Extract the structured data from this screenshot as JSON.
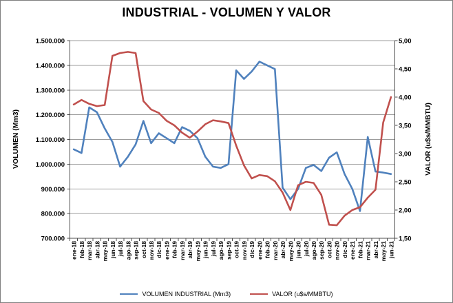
{
  "chart_data": {
    "type": "line",
    "title": "INDUSTRIAL - VOLUMEN Y VALOR",
    "grid": true,
    "legend_position": "bottom",
    "categories": [
      "ene-18",
      "feb-18",
      "mar-18",
      "abr-18",
      "may-18",
      "jun-18",
      "jul-18",
      "ago-18",
      "sep-18",
      "oct-18",
      "nov-18",
      "dic-18",
      "ene-19",
      "feb-19",
      "mar-19",
      "abr-19",
      "may-19",
      "jun-19",
      "jul-19",
      "ago-19",
      "sep-19",
      "oct-19",
      "nov-19",
      "dic-19",
      "ene-20",
      "feb-20",
      "mar-20",
      "abr-20",
      "may-20",
      "jun-20",
      "jul-20",
      "ago-20",
      "sep-20",
      "oct-20",
      "nov-20",
      "dic-20",
      "ene-21",
      "feb-21",
      "mar-21",
      "abr-21",
      "may-21",
      "jun-21"
    ],
    "series": [
      {
        "name": "VOLUMEN  INDUSTRIAL  (Mm3)",
        "axis": "left",
        "color": "#4F81BD",
        "values": [
          1060000,
          1045000,
          1230000,
          1210000,
          1145000,
          1090000,
          990000,
          1030000,
          1080000,
          1175000,
          1085000,
          1125000,
          1105000,
          1085000,
          1150000,
          1135000,
          1105000,
          1030000,
          990000,
          985000,
          1000000,
          1380000,
          1345000,
          1375000,
          1415000,
          1400000,
          1385000,
          905000,
          858000,
          900000,
          985000,
          997000,
          972000,
          1026000,
          1048000,
          960000,
          900000,
          810000,
          1110000,
          970000,
          966000,
          960000
        ]
      },
      {
        "name": "VALOR (u$s/MMBTU)",
        "axis": "right",
        "color": "#C0504D",
        "values": [
          3.87,
          3.95,
          3.88,
          3.84,
          3.86,
          4.73,
          4.78,
          4.8,
          4.78,
          3.93,
          3.78,
          3.72,
          3.58,
          3.5,
          3.37,
          3.28,
          3.39,
          3.52,
          3.59,
          3.57,
          3.54,
          3.14,
          2.79,
          2.56,
          2.62,
          2.6,
          2.51,
          2.31,
          2.0,
          2.44,
          2.5,
          2.48,
          2.27,
          1.74,
          1.73,
          1.9,
          2.0,
          2.05,
          2.22,
          2.36,
          3.55,
          4.0
        ]
      }
    ],
    "left_axis": {
      "label": "VOLUMEN (Mm3)",
      "min": 700000,
      "max": 1500000,
      "step": 100000,
      "tick_labels": [
        "700.000",
        "800.000",
        "900.000",
        "1.000.000",
        "1.100.000",
        "1.200.000",
        "1.300.000",
        "1.400.000",
        "1.500.000"
      ]
    },
    "right_axis": {
      "label": "VALOR (u$s/MMBTU)",
      "min": 1.5,
      "max": 5.0,
      "step": 0.5,
      "tick_labels": [
        "1,50",
        "2,00",
        "2,50",
        "3,00",
        "3,50",
        "4,00",
        "4,50",
        "5,00"
      ]
    }
  }
}
